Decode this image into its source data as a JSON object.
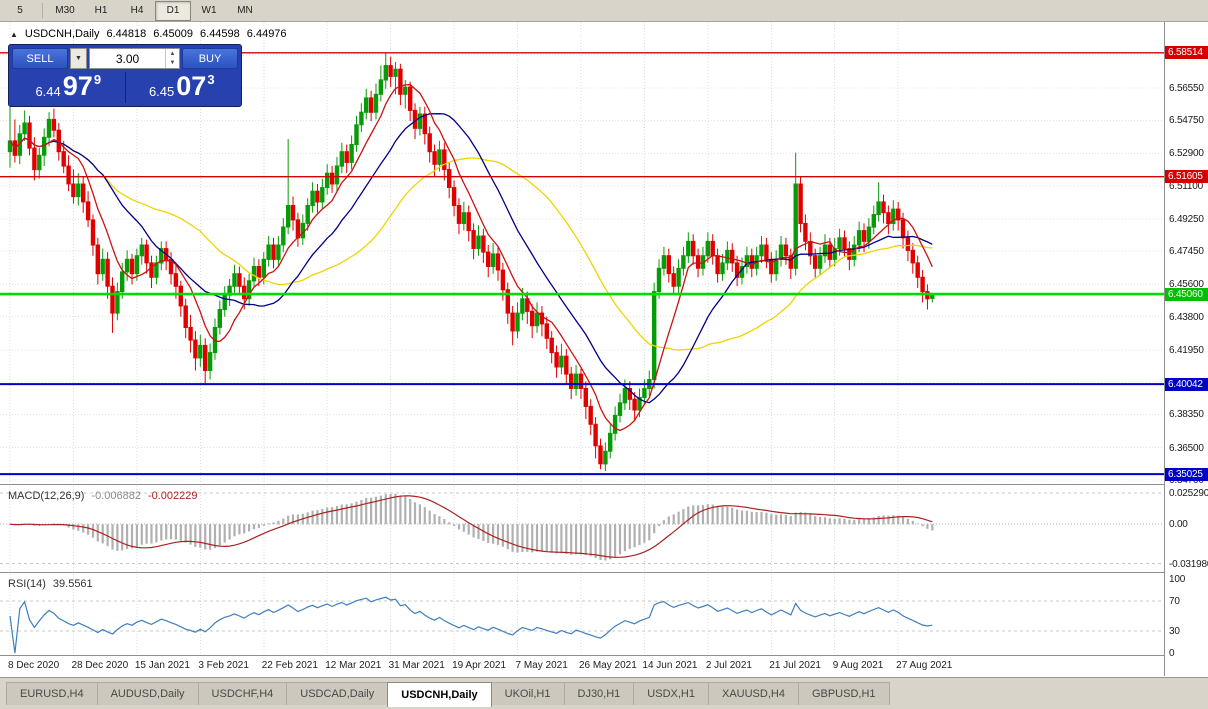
{
  "toolbar": {
    "timeframes": [
      "5",
      "M30",
      "H1",
      "H4",
      "D1",
      "W1",
      "MN"
    ],
    "active_timeframe": "D1"
  },
  "chart_header": {
    "collapse_icon": "▲",
    "title": "USDCNH,Daily",
    "open": "6.44818",
    "high": "6.45009",
    "low": "6.44598",
    "close": "6.44976"
  },
  "trade_panel": {
    "sell_label": "SELL",
    "buy_label": "BUY",
    "volume": "3.00",
    "combo_arrow": "▼",
    "spin_up": "▲",
    "spin_down": "▼",
    "bid": {
      "prefix": "6.44",
      "big": "97",
      "sup": "9"
    },
    "ask": {
      "prefix": "6.45",
      "big": "07",
      "sup": "3"
    }
  },
  "price_axis": {
    "labels": [
      "6.56550",
      "6.54750",
      "6.52900",
      "6.51100",
      "6.49250",
      "6.47450",
      "6.45600",
      "6.43800",
      "6.41950",
      "6.38350",
      "6.36500",
      "6.34700"
    ],
    "badges": [
      {
        "text": "6.58514",
        "color": "#d40000"
      },
      {
        "text": "6.51605",
        "color": "#d40000"
      },
      {
        "text": "6.45060",
        "color": "#00c000"
      },
      {
        "text": "6.40042",
        "color": "#0000c8"
      },
      {
        "text": "6.35025",
        "color": "#0000c8"
      }
    ]
  },
  "macd_panel": {
    "label": "MACD(12,26,9)",
    "main_value": "-0.006882",
    "signal_value": "-0.002229",
    "axis_labels": [
      "0.025290",
      "0.00",
      "-0.031980"
    ]
  },
  "rsi_panel": {
    "label": "RSI(14)",
    "value": "39.5561",
    "axis_labels": [
      "100",
      "70",
      "30",
      "0"
    ]
  },
  "time_axis": [
    {
      "text": "8 Dec 2020",
      "idx": 0
    },
    {
      "text": "28 Dec 2020",
      "idx": 13
    },
    {
      "text": "15 Jan 2021",
      "idx": 26
    },
    {
      "text": "3 Feb 2021",
      "idx": 39
    },
    {
      "text": "22 Feb 2021",
      "idx": 52
    },
    {
      "text": "12 Mar 2021",
      "idx": 65
    },
    {
      "text": "31 Mar 2021",
      "idx": 78
    },
    {
      "text": "19 Apr 2021",
      "idx": 91
    },
    {
      "text": "7 May 2021",
      "idx": 104
    },
    {
      "text": "26 May 2021",
      "idx": 117
    },
    {
      "text": "14 Jun 2021",
      "idx": 130
    },
    {
      "text": "2 Jul 2021",
      "idx": 143
    },
    {
      "text": "21 Jul 2021",
      "idx": 156
    },
    {
      "text": "9 Aug 2021",
      "idx": 169
    },
    {
      "text": "27 Aug 2021",
      "idx": 182
    }
  ],
  "tabs": {
    "items": [
      "EURUSD,H4",
      "AUDUSD,Daily",
      "USDCHF,H4",
      "USDCAD,Daily",
      "USDCNH,Daily",
      "UKOil,H1",
      "DJ30,H1",
      "USDX,H1",
      "XAUUSD,H4",
      "GBPUSD,H1"
    ],
    "active": "USDCNH,Daily"
  },
  "chart_data": {
    "type": "candlestick",
    "symbol": "USDCNH",
    "timeframe": "Daily",
    "price_range": [
      6.3453,
      6.6023
    ],
    "grid_prices": [
      6.584,
      6.5655,
      6.5475,
      6.529,
      6.511,
      6.4925,
      6.4745,
      6.456,
      6.438,
      6.4195,
      6.4015,
      6.3835,
      6.365,
      6.347
    ],
    "up_color": "#089b08",
    "down_color": "#e00000",
    "levels": [
      {
        "price": 6.58514,
        "color": "#d40000",
        "width": 1.4
      },
      {
        "price": 6.51605,
        "color": "#d40000",
        "width": 1.4
      },
      {
        "price": 6.4506,
        "color": "#00dc00",
        "width": 2.6
      },
      {
        "price": 6.40042,
        "color": "#0000c8",
        "width": 2.0
      },
      {
        "price": 6.35025,
        "color": "#0000c8",
        "width": 2.0
      }
    ],
    "moving_averages": [
      {
        "period": 40,
        "color": "#edd500"
      },
      {
        "period": 20,
        "color": "#00008b"
      },
      {
        "period": 8,
        "color": "#cc1111"
      }
    ],
    "macd": {
      "fast": 12,
      "slow": 26,
      "signal": 9,
      "range": [
        -0.0379,
        0.031
      ],
      "histogram_color": "#b0b0b0",
      "signal_color": "#aa2222",
      "level_lines": [
        0.02529,
        -0.03198
      ]
    },
    "rsi": {
      "period": 14,
      "color": "#3f7fbf",
      "levels": [
        70,
        30
      ]
    },
    "candles": [
      [
        6.53,
        6.556,
        6.521,
        6.536
      ],
      [
        6.536,
        6.548,
        6.524,
        6.528
      ],
      [
        6.528,
        6.545,
        6.523,
        6.54
      ],
      [
        6.54,
        6.553,
        6.536,
        6.546
      ],
      [
        6.546,
        6.55,
        6.528,
        6.532
      ],
      [
        6.532,
        6.538,
        6.514,
        6.52
      ],
      [
        6.52,
        6.532,
        6.515,
        6.528
      ],
      [
        6.528,
        6.543,
        6.522,
        6.538
      ],
      [
        6.538,
        6.552,
        6.533,
        6.548
      ],
      [
        6.548,
        6.554,
        6.538,
        6.542
      ],
      [
        6.542,
        6.546,
        6.525,
        6.53
      ],
      [
        6.53,
        6.536,
        6.518,
        6.522
      ],
      [
        6.522,
        6.528,
        6.508,
        6.512
      ],
      [
        6.512,
        6.52,
        6.501,
        6.505
      ],
      [
        6.505,
        6.518,
        6.5,
        6.512
      ],
      [
        6.512,
        6.516,
        6.496,
        6.502
      ],
      [
        6.502,
        6.508,
        6.488,
        6.492
      ],
      [
        6.492,
        6.495,
        6.472,
        6.478
      ],
      [
        6.478,
        6.482,
        6.456,
        6.462
      ],
      [
        6.462,
        6.476,
        6.458,
        6.47
      ],
      [
        6.47,
        6.474,
        6.448,
        6.455
      ],
      [
        6.455,
        6.46,
        6.429,
        6.44
      ],
      [
        6.44,
        6.457,
        6.436,
        6.452
      ],
      [
        6.452,
        6.468,
        6.448,
        6.463
      ],
      [
        6.463,
        6.475,
        6.458,
        6.47
      ],
      [
        6.47,
        6.473,
        6.456,
        6.462
      ],
      [
        6.462,
        6.476,
        6.458,
        6.472
      ],
      [
        6.472,
        6.482,
        6.467,
        6.478
      ],
      [
        6.478,
        6.481,
        6.462,
        6.468
      ],
      [
        6.468,
        6.472,
        6.454,
        6.46
      ],
      [
        6.46,
        6.472,
        6.456,
        6.468
      ],
      [
        6.468,
        6.48,
        6.464,
        6.476
      ],
      [
        6.476,
        6.48,
        6.464,
        6.47
      ],
      [
        6.47,
        6.474,
        6.456,
        6.462
      ],
      [
        6.462,
        6.468,
        6.448,
        6.455
      ],
      [
        6.455,
        6.458,
        6.438,
        6.444
      ],
      [
        6.444,
        6.448,
        6.426,
        6.432
      ],
      [
        6.432,
        6.439,
        6.418,
        6.425
      ],
      [
        6.425,
        6.43,
        6.408,
        6.415
      ],
      [
        6.415,
        6.428,
        6.41,
        6.422
      ],
      [
        6.422,
        6.426,
        6.4005,
        6.408
      ],
      [
        6.408,
        6.423,
        6.403,
        6.418
      ],
      [
        6.418,
        6.437,
        6.414,
        6.432
      ],
      [
        6.432,
        6.447,
        6.428,
        6.442
      ],
      [
        6.442,
        6.455,
        6.438,
        6.45
      ],
      [
        6.45,
        6.459,
        6.444,
        6.455
      ],
      [
        6.455,
        6.467,
        6.451,
        6.462
      ],
      [
        6.462,
        6.466,
        6.45,
        6.455
      ],
      [
        6.455,
        6.46,
        6.442,
        6.448
      ],
      [
        6.448,
        6.462,
        6.444,
        6.458
      ],
      [
        6.458,
        6.471,
        6.454,
        6.466
      ],
      [
        6.466,
        6.47,
        6.455,
        6.46
      ],
      [
        6.46,
        6.474,
        6.456,
        6.47
      ],
      [
        6.47,
        6.483,
        6.466,
        6.478
      ],
      [
        6.478,
        6.482,
        6.465,
        6.47
      ],
      [
        6.47,
        6.483,
        6.466,
        6.478
      ],
      [
        6.478,
        6.493,
        6.474,
        6.488
      ],
      [
        6.488,
        6.537,
        6.484,
        6.5
      ],
      [
        6.5,
        6.505,
        6.486,
        6.492
      ],
      [
        6.492,
        6.496,
        6.477,
        6.482
      ],
      [
        6.482,
        6.495,
        6.478,
        6.49
      ],
      [
        6.49,
        6.504,
        6.486,
        6.5
      ],
      [
        6.5,
        6.513,
        6.496,
        6.508
      ],
      [
        6.508,
        6.512,
        6.496,
        6.502
      ],
      [
        6.502,
        6.515,
        6.498,
        6.51
      ],
      [
        6.51,
        6.523,
        6.506,
        6.518
      ],
      [
        6.518,
        6.522,
        6.507,
        6.512
      ],
      [
        6.512,
        6.527,
        6.508,
        6.522
      ],
      [
        6.522,
        6.535,
        6.518,
        6.53
      ],
      [
        6.53,
        6.534,
        6.518,
        6.524
      ],
      [
        6.524,
        6.539,
        6.52,
        6.534
      ],
      [
        6.534,
        6.55,
        6.53,
        6.545
      ],
      [
        6.545,
        6.557,
        6.541,
        6.552
      ],
      [
        6.552,
        6.565,
        6.548,
        6.56
      ],
      [
        6.56,
        6.564,
        6.547,
        6.552
      ],
      [
        6.552,
        6.568,
        6.548,
        6.562
      ],
      [
        6.562,
        6.578,
        6.558,
        6.57
      ],
      [
        6.57,
        6.5851,
        6.565,
        6.578
      ],
      [
        6.578,
        6.583,
        6.566,
        6.572
      ],
      [
        6.572,
        6.58,
        6.562,
        6.576
      ],
      [
        6.576,
        6.579,
        6.556,
        6.562
      ],
      [
        6.562,
        6.57,
        6.554,
        6.566
      ],
      [
        6.566,
        6.569,
        6.547,
        6.553
      ],
      [
        6.553,
        6.557,
        6.537,
        6.543
      ],
      [
        6.543,
        6.555,
        6.539,
        6.551
      ],
      [
        6.551,
        6.555,
        6.534,
        6.54
      ],
      [
        6.54,
        6.544,
        6.524,
        6.53
      ],
      [
        6.53,
        6.534,
        6.516,
        6.523
      ],
      [
        6.523,
        6.536,
        6.519,
        6.531
      ],
      [
        6.531,
        6.535,
        6.514,
        6.52
      ],
      [
        6.52,
        6.524,
        6.504,
        6.51
      ],
      [
        6.51,
        6.514,
        6.494,
        6.5
      ],
      [
        6.5,
        6.504,
        6.484,
        6.49
      ],
      [
        6.49,
        6.502,
        6.486,
        6.496
      ],
      [
        6.496,
        6.5,
        6.48,
        6.486
      ],
      [
        6.486,
        6.49,
        6.47,
        6.476
      ],
      [
        6.476,
        6.489,
        6.472,
        6.483
      ],
      [
        6.483,
        6.487,
        6.468,
        6.474
      ],
      [
        6.474,
        6.478,
        6.46,
        6.466
      ],
      [
        6.466,
        6.479,
        6.462,
        6.473
      ],
      [
        6.473,
        6.477,
        6.458,
        6.464
      ],
      [
        6.464,
        6.468,
        6.447,
        6.453
      ],
      [
        6.453,
        6.457,
        6.434,
        6.44
      ],
      [
        6.44,
        6.444,
        6.422,
        6.43
      ],
      [
        6.43,
        6.446,
        6.426,
        6.44
      ],
      [
        6.44,
        6.454,
        6.436,
        6.448
      ],
      [
        6.448,
        6.452,
        6.434,
        6.441
      ],
      [
        6.441,
        6.445,
        6.426,
        6.433
      ],
      [
        6.433,
        6.446,
        6.429,
        6.44
      ],
      [
        6.44,
        6.444,
        6.427,
        6.434
      ],
      [
        6.434,
        6.438,
        6.42,
        6.426
      ],
      [
        6.426,
        6.43,
        6.412,
        6.418
      ],
      [
        6.418,
        6.422,
        6.404,
        6.41
      ],
      [
        6.41,
        6.423,
        6.406,
        6.416
      ],
      [
        6.416,
        6.42,
        6.4,
        6.406
      ],
      [
        6.406,
        6.41,
        6.392,
        6.398
      ],
      [
        6.398,
        6.411,
        6.394,
        6.406
      ],
      [
        6.406,
        6.409,
        6.392,
        6.398
      ],
      [
        6.398,
        6.402,
        6.381,
        6.388
      ],
      [
        6.388,
        6.392,
        6.372,
        6.378
      ],
      [
        6.378,
        6.382,
        6.359,
        6.366
      ],
      [
        6.366,
        6.37,
        6.353,
        6.356
      ],
      [
        6.356,
        6.368,
        6.352,
        6.363
      ],
      [
        6.363,
        6.378,
        6.359,
        6.373
      ],
      [
        6.373,
        6.388,
        6.369,
        6.383
      ],
      [
        6.383,
        6.395,
        6.379,
        6.39
      ],
      [
        6.39,
        6.403,
        6.386,
        6.398
      ],
      [
        6.398,
        6.402,
        6.386,
        6.392
      ],
      [
        6.392,
        6.396,
        6.38,
        6.386
      ],
      [
        6.386,
        6.398,
        6.382,
        6.393
      ],
      [
        6.393,
        6.403,
        6.389,
        6.398
      ],
      [
        6.398,
        6.408,
        6.394,
        6.403
      ],
      [
        6.403,
        6.457,
        6.398,
        6.452
      ],
      [
        6.452,
        6.47,
        6.448,
        6.465
      ],
      [
        6.465,
        6.477,
        6.461,
        6.472
      ],
      [
        6.472,
        6.476,
        6.457,
        6.462
      ],
      [
        6.462,
        6.466,
        6.45,
        6.455
      ],
      [
        6.455,
        6.47,
        6.451,
        6.465
      ],
      [
        6.465,
        6.477,
        6.461,
        6.472
      ],
      [
        6.472,
        6.485,
        6.468,
        6.48
      ],
      [
        6.48,
        6.484,
        6.467,
        6.472
      ],
      [
        6.472,
        6.476,
        6.46,
        6.465
      ],
      [
        6.465,
        6.477,
        6.461,
        6.472
      ],
      [
        6.472,
        6.485,
        6.468,
        6.48
      ],
      [
        6.48,
        6.484,
        6.467,
        6.472
      ],
      [
        6.472,
        6.476,
        6.457,
        6.462
      ],
      [
        6.462,
        6.473,
        6.458,
        6.468
      ],
      [
        6.468,
        6.48,
        6.464,
        6.475
      ],
      [
        6.475,
        6.479,
        6.463,
        6.468
      ],
      [
        6.468,
        6.472,
        6.455,
        6.46
      ],
      [
        6.46,
        6.471,
        6.456,
        6.466
      ],
      [
        6.466,
        6.477,
        6.462,
        6.472
      ],
      [
        6.472,
        6.476,
        6.46,
        6.465
      ],
      [
        6.465,
        6.477,
        6.461,
        6.472
      ],
      [
        6.472,
        6.483,
        6.468,
        6.478
      ],
      [
        6.478,
        6.482,
        6.465,
        6.47
      ],
      [
        6.47,
        6.474,
        6.457,
        6.462
      ],
      [
        6.462,
        6.475,
        6.458,
        6.47
      ],
      [
        6.47,
        6.483,
        6.466,
        6.478
      ],
      [
        6.478,
        6.482,
        6.467,
        6.472
      ],
      [
        6.472,
        6.476,
        6.459,
        6.465
      ],
      [
        6.465,
        6.5295,
        6.461,
        6.512
      ],
      [
        6.512,
        6.516,
        6.485,
        6.49
      ],
      [
        6.49,
        6.495,
        6.475,
        6.48
      ],
      [
        6.48,
        6.485,
        6.467,
        6.472
      ],
      [
        6.472,
        6.476,
        6.46,
        6.465
      ],
      [
        6.465,
        6.477,
        6.461,
        6.472
      ],
      [
        6.472,
        6.484,
        6.468,
        6.478
      ],
      [
        6.478,
        6.482,
        6.465,
        6.47
      ],
      [
        6.47,
        6.482,
        6.466,
        6.476
      ],
      [
        6.476,
        6.487,
        6.472,
        6.482
      ],
      [
        6.482,
        6.486,
        6.471,
        6.476
      ],
      [
        6.476,
        6.48,
        6.464,
        6.47
      ],
      [
        6.47,
        6.483,
        6.466,
        6.478
      ],
      [
        6.478,
        6.491,
        6.474,
        6.486
      ],
      [
        6.486,
        6.49,
        6.474,
        6.48
      ],
      [
        6.48,
        6.493,
        6.476,
        6.488
      ],
      [
        6.488,
        6.5,
        6.484,
        6.495
      ],
      [
        6.495,
        6.513,
        6.491,
        6.502
      ],
      [
        6.502,
        6.506,
        6.49,
        6.496
      ],
      [
        6.496,
        6.5,
        6.484,
        6.49
      ],
      [
        6.49,
        6.503,
        6.486,
        6.498
      ],
      [
        6.498,
        6.502,
        6.486,
        6.492
      ],
      [
        6.492,
        6.496,
        6.476,
        6.482
      ],
      [
        6.482,
        6.486,
        6.469,
        6.475
      ],
      [
        6.475,
        6.479,
        6.462,
        6.468
      ],
      [
        6.468,
        6.472,
        6.454,
        6.46
      ],
      [
        6.46,
        6.464,
        6.446,
        6.452
      ],
      [
        6.452,
        6.456,
        6.442,
        6.448
      ],
      [
        6.44818,
        6.45009,
        6.44598,
        6.44976
      ]
    ]
  }
}
